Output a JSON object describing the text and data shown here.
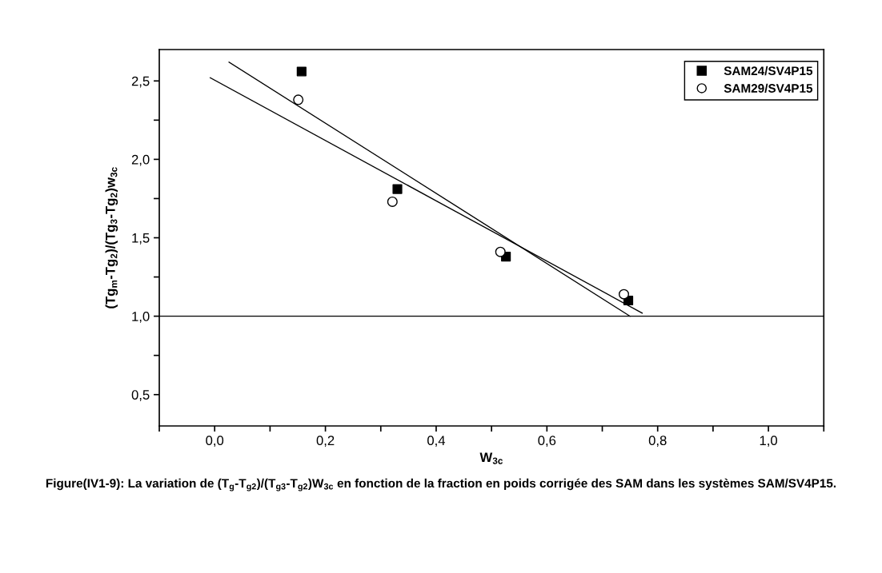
{
  "chart_data": {
    "type": "scatter",
    "xlabel": "W$_{3c}$",
    "ylabel": "(Tg$_{m}$-Tg$_{2}$)/(Tg$_{3}$-Tg$_{2}$)w$_{3c}$",
    "annotations": [
      "Figure(IV1-9): La variation de (T$_{g}$-T$_{g2}$)/(T$_{g3}$-T$_{g2}$)W$_{3c}$ en fonction de la fraction en poids corrigée des SAM dans les systèmes SAM/SV4P15."
    ],
    "series": [
      {
        "name": "SAM24/SV4P15",
        "marker": "square",
        "color": "#000000",
        "x": [
          0.157,
          0.33,
          0.526,
          0.747
        ],
        "values": [
          2.56,
          1.81,
          1.38,
          1.1
        ]
      },
      {
        "name": "SAM29/SV4P15",
        "marker": "circle",
        "color": "#000000",
        "x": [
          0.151,
          0.321,
          0.516,
          0.739
        ],
        "values": [
          2.38,
          1.73,
          1.41,
          1.14
        ]
      },
      {
        "type": "line",
        "color": "#000000",
        "x": [
          0.026,
          0.75
        ],
        "values": [
          2.62,
          1.0
        ]
      },
      {
        "type": "line",
        "color": "#000000",
        "x": [
          -0.008,
          0.772
        ],
        "values": [
          2.52,
          1.02
        ]
      }
    ],
    "ref_lines": [
      {
        "axis": "y",
        "value": 1.0,
        "color": "#000000"
      }
    ],
    "xlim": [
      -0.1,
      1.1
    ],
    "ylim": [
      0.3,
      2.7
    ],
    "xticks": [
      {
        "value": -0.1,
        "label": null
      },
      {
        "value": 0.0,
        "label": "0,0"
      },
      {
        "value": 0.1,
        "label": null
      },
      {
        "value": 0.2,
        "label": "0,2"
      },
      {
        "value": 0.3,
        "label": null
      },
      {
        "value": 0.4,
        "label": "0,4"
      },
      {
        "value": 0.5,
        "label": null
      },
      {
        "value": 0.6,
        "label": "0,6"
      },
      {
        "value": 0.7,
        "label": null
      },
      {
        "value": 0.8,
        "label": "0,8"
      },
      {
        "value": 0.9,
        "label": null
      },
      {
        "value": 1.0,
        "label": "1,0"
      },
      {
        "value": 1.1,
        "label": null
      }
    ],
    "yticks": [
      {
        "value": 0.5,
        "label": "0,5"
      },
      {
        "value": 0.75,
        "label": null
      },
      {
        "value": 1.0,
        "label": "1,0"
      },
      {
        "value": 1.25,
        "label": null
      },
      {
        "value": 1.5,
        "label": "1,5"
      },
      {
        "value": 1.75,
        "label": null
      },
      {
        "value": 2.0,
        "label": "2,0"
      },
      {
        "value": 2.25,
        "label": null
      },
      {
        "value": 2.5,
        "label": "2,5"
      }
    ],
    "grid": false,
    "legend": "top right"
  }
}
